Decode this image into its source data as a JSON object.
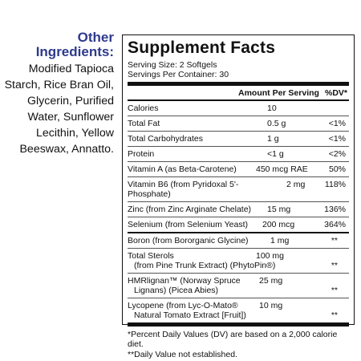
{
  "ingredients": {
    "title_line1": "Other",
    "title_line2": "Ingredients:",
    "text": "Modified Tapioca Starch, Rice Bran Oil, Glycerin, Purified Water, Sunflower Lecithin, Yellow Beeswax, Annatto."
  },
  "facts": {
    "title": "Supplement Facts",
    "serving_size": "Serving Size: 2 Softgels",
    "servings_per_container": "Servings Per Container: 30",
    "header": {
      "amount": "Amount Per Serving",
      "dv": "%DV*"
    },
    "rows_a": [
      {
        "name": "Calories",
        "amount": "10",
        "dv": ""
      },
      {
        "name": "Total Fat",
        "amount": "0.5 g",
        "dv": "<1%"
      },
      {
        "name": "Total Carbohydrates",
        "amount": "1 g",
        "dv": "<1%"
      },
      {
        "name": "Protein",
        "amount": "<1 g",
        "dv": "<2%"
      },
      {
        "name": "Vitamin A (as Beta-Carotene)",
        "amount": "450 mcg RAE",
        "dv": "50%"
      },
      {
        "name": "Vitamin B6 (from Pyridoxal 5'-Phosphate)",
        "amount": "2 mg",
        "dv": "118%"
      },
      {
        "name": "Zinc (from Zinc Arginate Chelate)",
        "amount": "15 mg",
        "dv": "136%"
      },
      {
        "name": "Selenium (from Selenium Yeast)",
        "amount": "200 mcg",
        "dv": "364%"
      }
    ],
    "rows_b": [
      {
        "name": "Boron (from Bororganic Glycine)",
        "amount": "1 mg",
        "dv": "**"
      },
      {
        "name": "Total Sterols",
        "name2": "(from Pine Trunk Extract) (PhytoPin®)",
        "amount": "100 mg",
        "dv": "**"
      },
      {
        "name": "HMRlignan™ (Norway Spruce",
        "name2": "Lignans) (Picea Abies)",
        "amount": "25 mg",
        "dv": "**"
      },
      {
        "name": "Lycopene (from Lyc-O-Mato®",
        "name2": "Natural Tomato Extract [Fruit])",
        "amount": "10 mg",
        "dv": "**"
      }
    ],
    "footnote1": "*Percent Daily Values (DV) are based on a 2,000 calorie diet.",
    "footnote2": "**Daily Value not established."
  }
}
